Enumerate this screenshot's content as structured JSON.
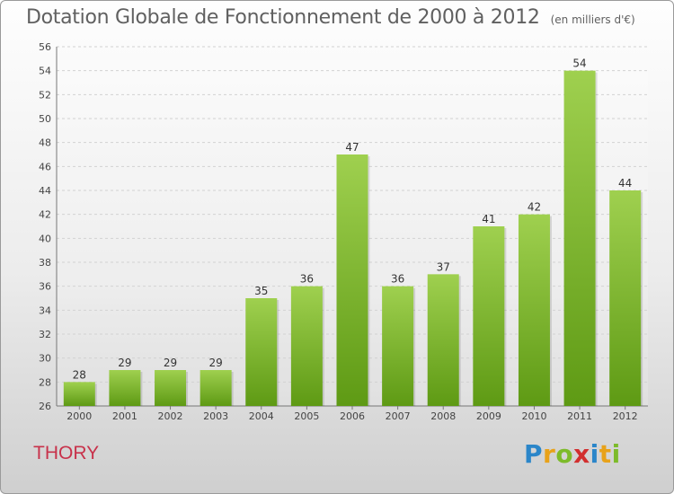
{
  "title": "Dotation Globale de Fonctionnement de 2000 à 2012",
  "subtitle": "(en milliers d'€)",
  "commune": "THORY",
  "logo": "Proxiti",
  "colors": {
    "bar_light": "#9fd04f",
    "bar_dark": "#5e9a14",
    "title": "#606060",
    "commune": "#c8324b"
  },
  "chart_data": {
    "type": "bar",
    "title": "Dotation Globale de Fonctionnement de 2000 à 2012",
    "subtitle": "(en milliers d'€)",
    "categories": [
      "2000",
      "2001",
      "2002",
      "2003",
      "2004",
      "2005",
      "2006",
      "2007",
      "2008",
      "2009",
      "2010",
      "2011",
      "2012"
    ],
    "values": [
      28,
      29,
      29,
      29,
      35,
      36,
      47,
      36,
      37,
      41,
      42,
      54,
      44
    ],
    "ylim": [
      26,
      56
    ],
    "yticks": [
      26,
      28,
      30,
      32,
      34,
      36,
      38,
      40,
      42,
      44,
      46,
      48,
      50,
      52,
      54,
      56
    ],
    "grid": true
  }
}
